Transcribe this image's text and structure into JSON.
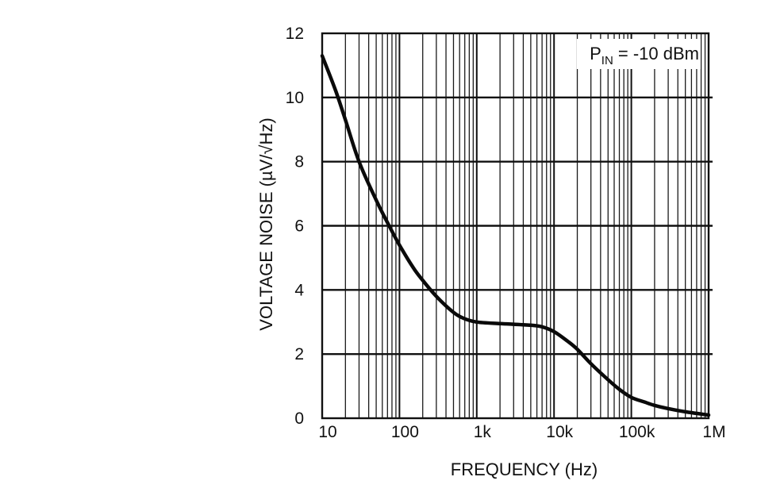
{
  "chart_data": {
    "type": "line",
    "title": "",
    "xlabel": "FREQUENCY (Hz)",
    "ylabel": "VOLTAGE NOISE (µV/√Hz)",
    "x_scale": "log",
    "xlim": [
      10,
      1000000
    ],
    "ylim": [
      0,
      12
    ],
    "x_tick_values": [
      10,
      100,
      1000,
      10000,
      100000,
      1000000
    ],
    "x_tick_labels": [
      "10",
      "100",
      "1k",
      "10k",
      "100k",
      "1M"
    ],
    "y_tick_values": [
      0,
      2,
      4,
      6,
      8,
      10,
      12
    ],
    "y_tick_labels": [
      "0",
      "2",
      "4",
      "6",
      "8",
      "10",
      "12"
    ],
    "grid": true,
    "annotation": {
      "main": "P",
      "sub": "IN",
      "rest": " = -10 dBm",
      "position": "top-right"
    },
    "series": [
      {
        "name": "Voltage Noise",
        "x": [
          10,
          15,
          20,
          30,
          50,
          70,
          100,
          150,
          200,
          300,
          500,
          700,
          1000,
          2000,
          3000,
          5000,
          7000,
          10000,
          15000,
          20000,
          30000,
          50000,
          70000,
          100000,
          150000,
          200000,
          300000,
          500000,
          1000000
        ],
        "y": [
          11.3,
          10.2,
          9.3,
          8.0,
          6.8,
          6.1,
          5.4,
          4.7,
          4.3,
          3.8,
          3.3,
          3.1,
          3.0,
          2.95,
          2.93,
          2.9,
          2.85,
          2.7,
          2.4,
          2.15,
          1.7,
          1.2,
          0.9,
          0.65,
          0.5,
          0.4,
          0.3,
          0.2,
          0.1
        ]
      }
    ]
  }
}
